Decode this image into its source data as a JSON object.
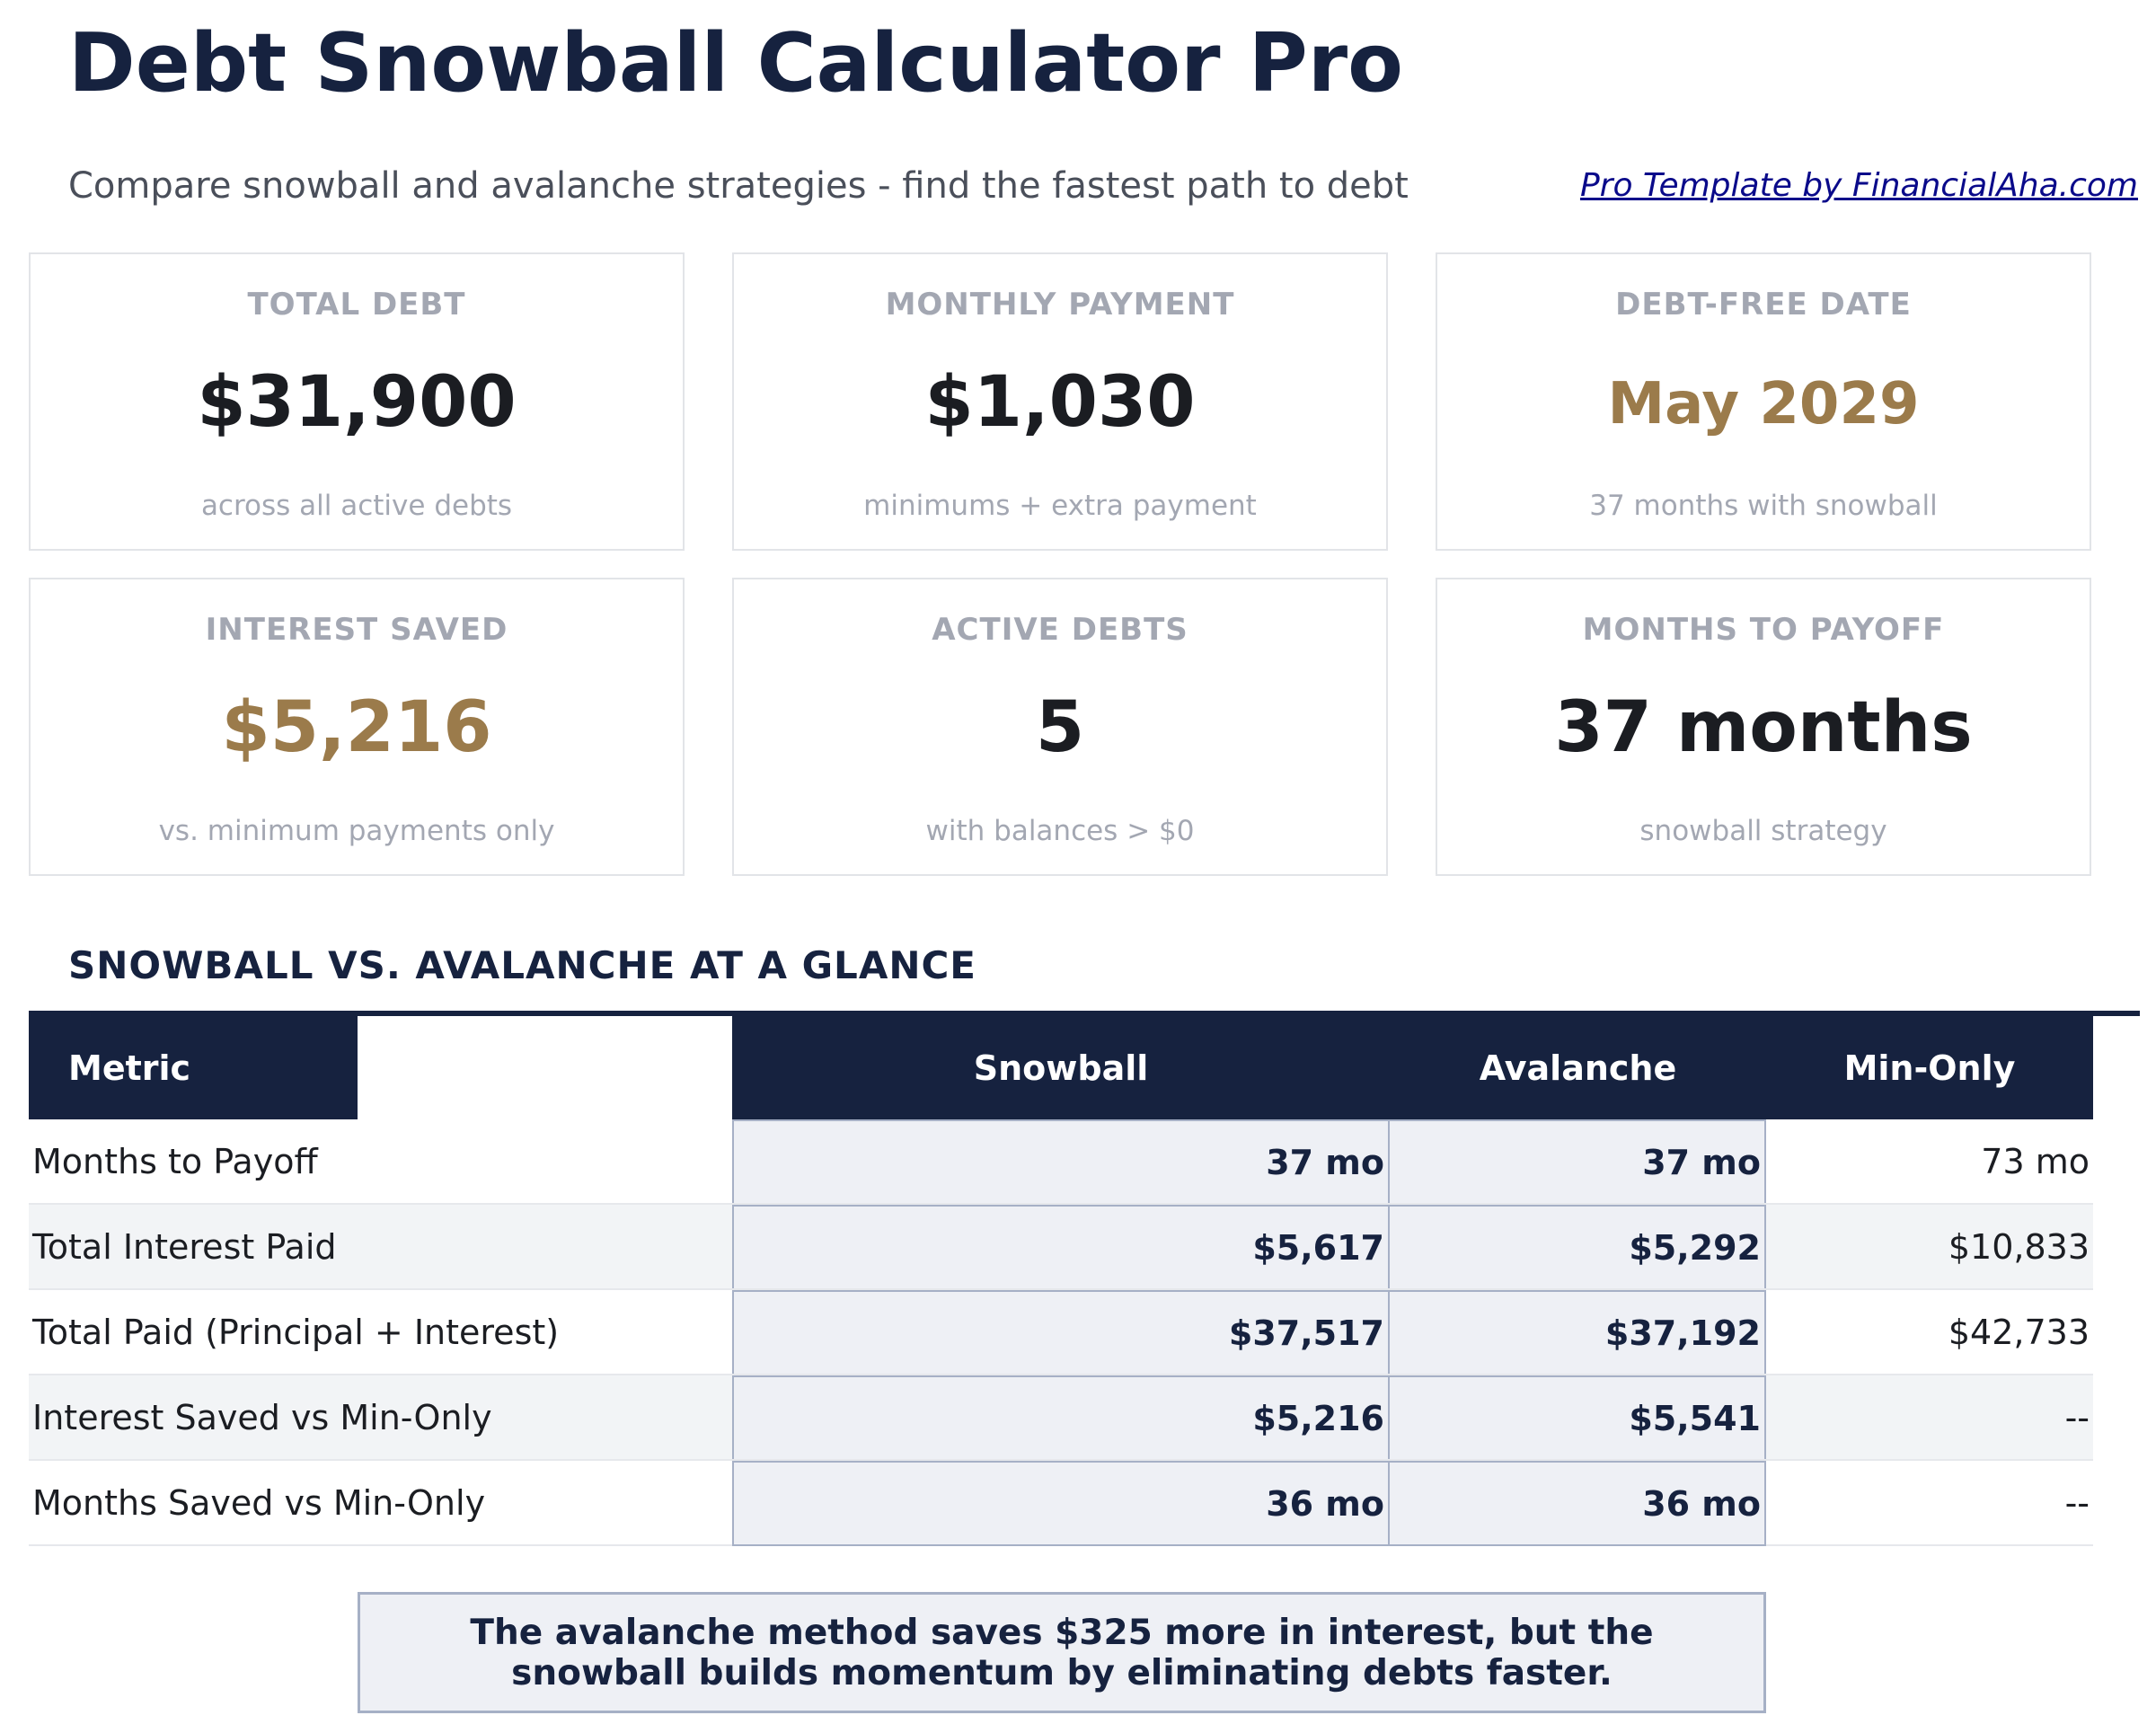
{
  "header": {
    "title": "Debt Snowball Calculator Pro",
    "subtitle": "Compare snowball and avalanche strategies - find the fastest path to debt",
    "credit_link": "Pro Template by FinancialAha.com"
  },
  "cards": [
    {
      "label": "TOTAL DEBT",
      "value": "$31,900",
      "sub": "across all active debts"
    },
    {
      "label": "MONTHLY PAYMENT",
      "value": "$1,030",
      "sub": "minimums + extra payment"
    },
    {
      "label": "DEBT-FREE DATE",
      "value": "May 2029",
      "sub": "37 months with snowball"
    },
    {
      "label": "INTEREST SAVED",
      "value": "$5,216",
      "sub": "vs. minimum payments only"
    },
    {
      "label": "ACTIVE DEBTS",
      "value": "5",
      "sub": "with balances > $0"
    },
    {
      "label": "MONTHS TO PAYOFF",
      "value": "37 months",
      "sub": "snowball strategy"
    }
  ],
  "comparison": {
    "title": "SNOWBALL VS. AVALANCHE AT A GLANCE",
    "headers": [
      "Metric",
      "Snowball",
      "Avalanche",
      "Min-Only"
    ],
    "rows": [
      [
        "Months to Payoff",
        "37 mo",
        "37 mo",
        "73 mo"
      ],
      [
        "Total Interest Paid",
        "$5,617",
        "$5,292",
        "$10,833"
      ],
      [
        "Total Paid (Principal + Interest)",
        "$37,517",
        "$37,192",
        "$42,733"
      ],
      [
        "Interest Saved vs Min-Only",
        "$5,216",
        "$5,541",
        "--"
      ],
      [
        "Months Saved vs Min-Only",
        "36 mo",
        "36 mo",
        "--"
      ]
    ],
    "note": "The avalanche method saves $325 more in interest, but the snowball builds momentum by eliminating debts faster."
  },
  "colors": {
    "navy": "#16223f",
    "gold": "#9b7b4b",
    "highlight": "#eef0f5"
  }
}
